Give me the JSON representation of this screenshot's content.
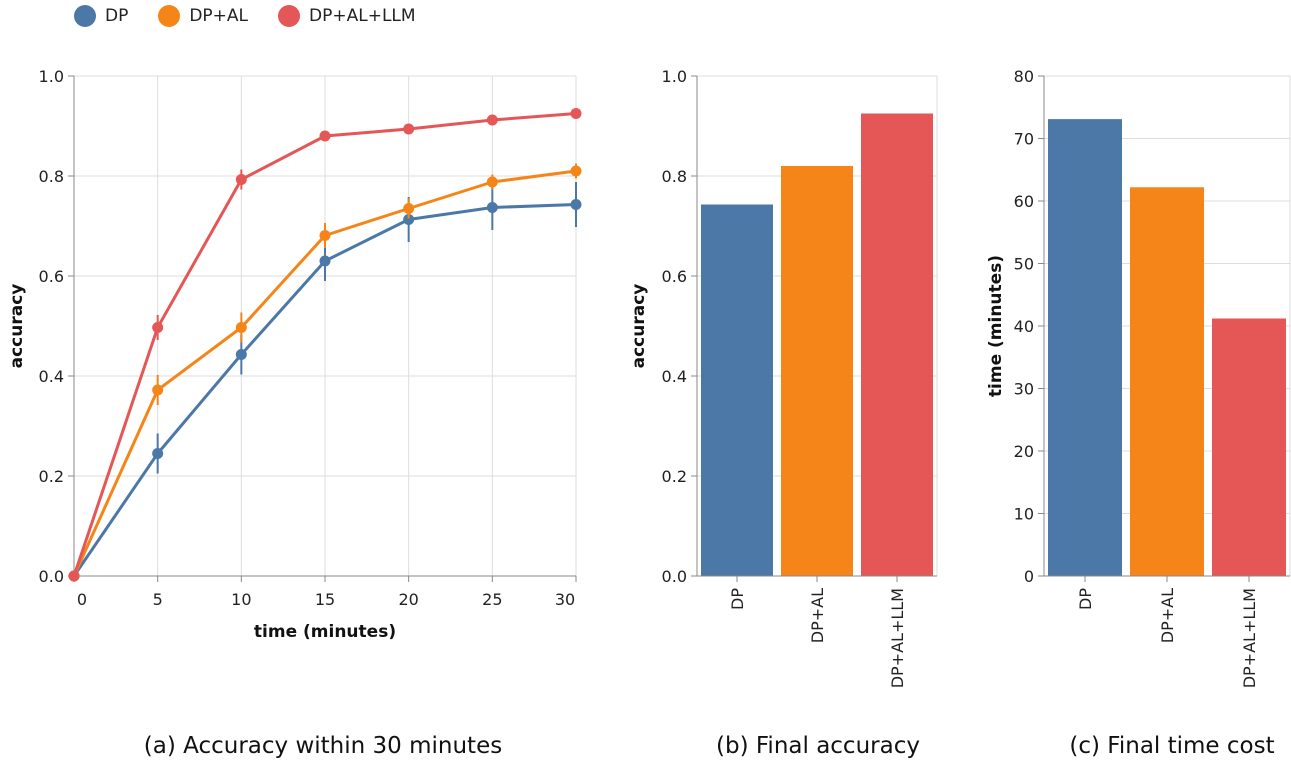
{
  "legend": [
    {
      "label": "DP",
      "color": "#4c78a8"
    },
    {
      "label": "DP+AL",
      "color": "#f58518"
    },
    {
      "label": "DP+AL+LLM",
      "color": "#e45756"
    }
  ],
  "captions": {
    "a": "(a) Accuracy within 30 minutes",
    "b": "(b) Final accuracy",
    "c": "(c) Final time cost"
  },
  "chart_data": [
    {
      "type": "line",
      "xlabel": "time (minutes)",
      "ylabel": "accuracy",
      "xlim": [
        0,
        30
      ],
      "ylim": [
        0,
        1
      ],
      "x_ticks": [
        "0",
        "5",
        "10",
        "15",
        "20",
        "25",
        "30"
      ],
      "y_ticks": [
        "0.0",
        "0.2",
        "0.4",
        "0.6",
        "0.8",
        "1.0"
      ],
      "grid": true,
      "x": [
        0,
        5,
        10,
        15,
        20,
        25,
        30
      ],
      "series": [
        {
          "name": "DP",
          "color": "#4c78a8",
          "values": [
            0.0,
            0.245,
            0.443,
            0.63,
            0.713,
            0.737,
            0.743
          ],
          "errors": [
            0.0,
            0.04,
            0.04,
            0.04,
            0.045,
            0.045,
            0.045
          ]
        },
        {
          "name": "DP+AL",
          "color": "#f58518",
          "values": [
            0.0,
            0.372,
            0.497,
            0.681,
            0.735,
            0.788,
            0.81
          ],
          "errors": [
            0.0,
            0.03,
            0.03,
            0.025,
            0.02,
            0.015,
            0.015
          ]
        },
        {
          "name": "DP+AL+LLM",
          "color": "#e45756",
          "values": [
            0.0,
            0.497,
            0.793,
            0.88,
            0.894,
            0.912,
            0.925
          ],
          "errors": [
            0.0,
            0.025,
            0.02,
            0.008,
            0.006,
            0.005,
            0.005
          ]
        }
      ]
    },
    {
      "type": "bar",
      "ylabel": "accuracy",
      "ylim": [
        0,
        1
      ],
      "y_ticks": [
        "0.0",
        "0.2",
        "0.4",
        "0.6",
        "0.8",
        "1.0"
      ],
      "grid": true,
      "categories": [
        "DP",
        "DP+AL",
        "DP+AL+LLM"
      ],
      "values": [
        0.743,
        0.82,
        0.925
      ],
      "colors": [
        "#4c78a8",
        "#f58518",
        "#e45756"
      ]
    },
    {
      "type": "bar",
      "ylabel": "time (minutes)",
      "ylim": [
        0,
        80
      ],
      "y_ticks": [
        "0",
        "10",
        "20",
        "30",
        "40",
        "50",
        "60",
        "70",
        "80"
      ],
      "grid": true,
      "categories": [
        "DP",
        "DP+AL",
        "DP+AL+LLM"
      ],
      "values": [
        73.1,
        62.2,
        41.2
      ],
      "colors": [
        "#4c78a8",
        "#f58518",
        "#e45756"
      ]
    }
  ]
}
